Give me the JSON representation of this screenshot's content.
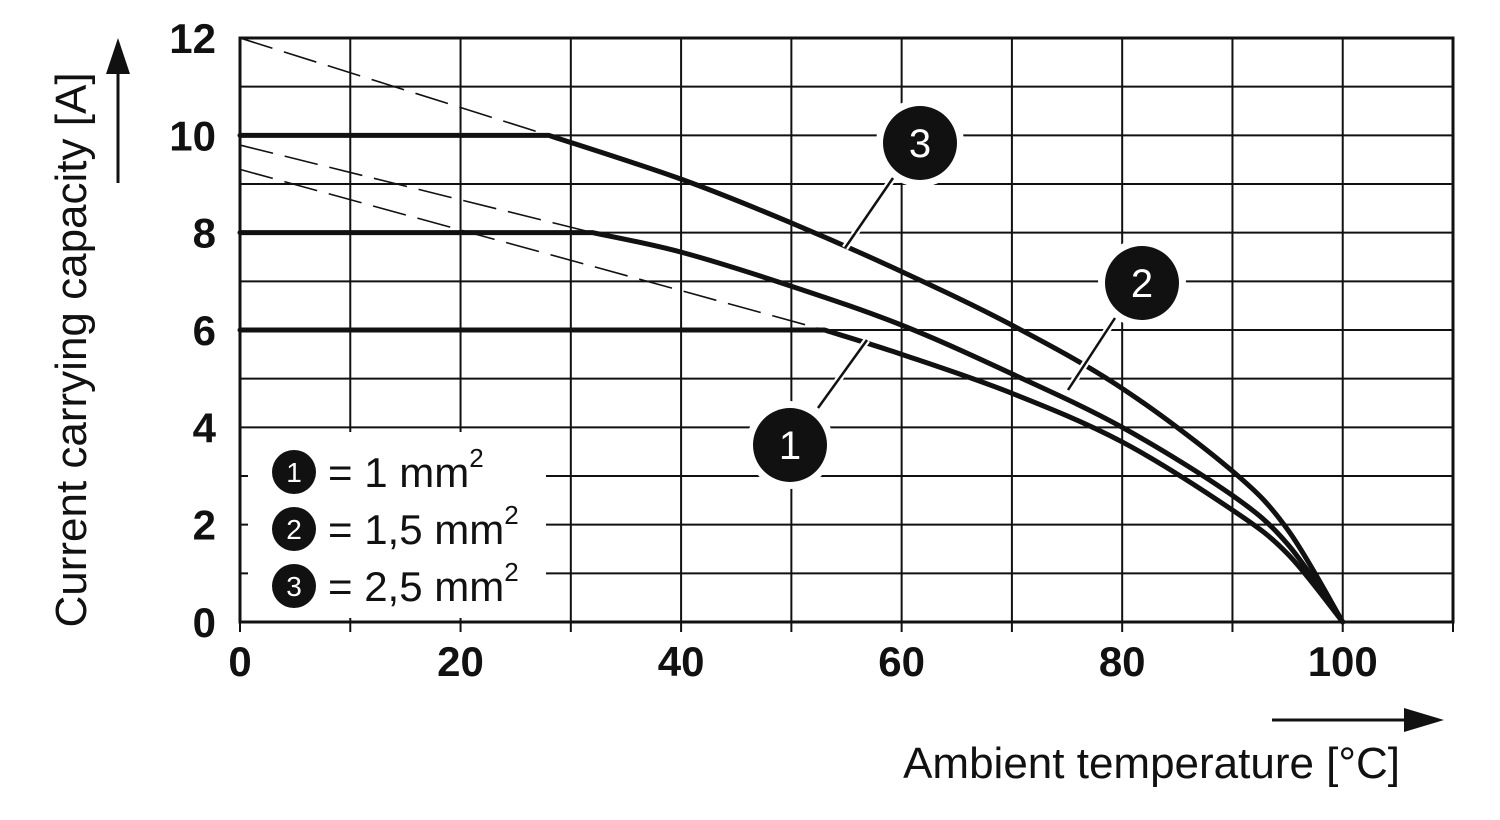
{
  "chart_data": {
    "type": "line",
    "xlabel": "Ambient temperature [°C]",
    "ylabel": "Current carrying capacity [A]",
    "xlim": [
      0,
      110
    ],
    "ylim": [
      0,
      12
    ],
    "x_ticks": [
      0,
      20,
      40,
      60,
      80,
      100
    ],
    "y_ticks": [
      0,
      2,
      4,
      6,
      8,
      10,
      12
    ],
    "grid": true,
    "legend_position": "bottom-left",
    "legend": [
      {
        "badge": "1",
        "text": "= 1 mm",
        "sup": "2"
      },
      {
        "badge": "2",
        "text": "= 1,5 mm",
        "sup": "2"
      },
      {
        "badge": "3",
        "text": "= 2,5 mm",
        "sup": "2"
      }
    ],
    "series": [
      {
        "badge": "1",
        "x": [
          0,
          53,
          60,
          70,
          80,
          90,
          95,
          100
        ],
        "y": [
          6.0,
          6.0,
          5.5,
          4.7,
          3.7,
          2.3,
          1.4,
          0
        ],
        "dashed_extension": {
          "x": [
            0,
            53
          ],
          "y": [
            9.3,
            6.0
          ]
        }
      },
      {
        "badge": "2",
        "x": [
          0,
          32,
          40,
          50,
          60,
          70,
          80,
          90,
          95,
          100
        ],
        "y": [
          8.0,
          8.0,
          7.6,
          6.9,
          6.1,
          5.1,
          4.0,
          2.6,
          1.6,
          0
        ],
        "dashed_extension": {
          "x": [
            0,
            32
          ],
          "y": [
            9.8,
            8.0
          ]
        }
      },
      {
        "badge": "3",
        "x": [
          0,
          28,
          40,
          50,
          60,
          70,
          80,
          90,
          95,
          100
        ],
        "y": [
          10.0,
          10.0,
          9.1,
          8.2,
          7.2,
          6.1,
          4.8,
          3.1,
          1.9,
          0
        ],
        "dashed_extension": {
          "x": [
            0,
            28
          ],
          "y": [
            12.0,
            10.0
          ]
        }
      }
    ]
  }
}
